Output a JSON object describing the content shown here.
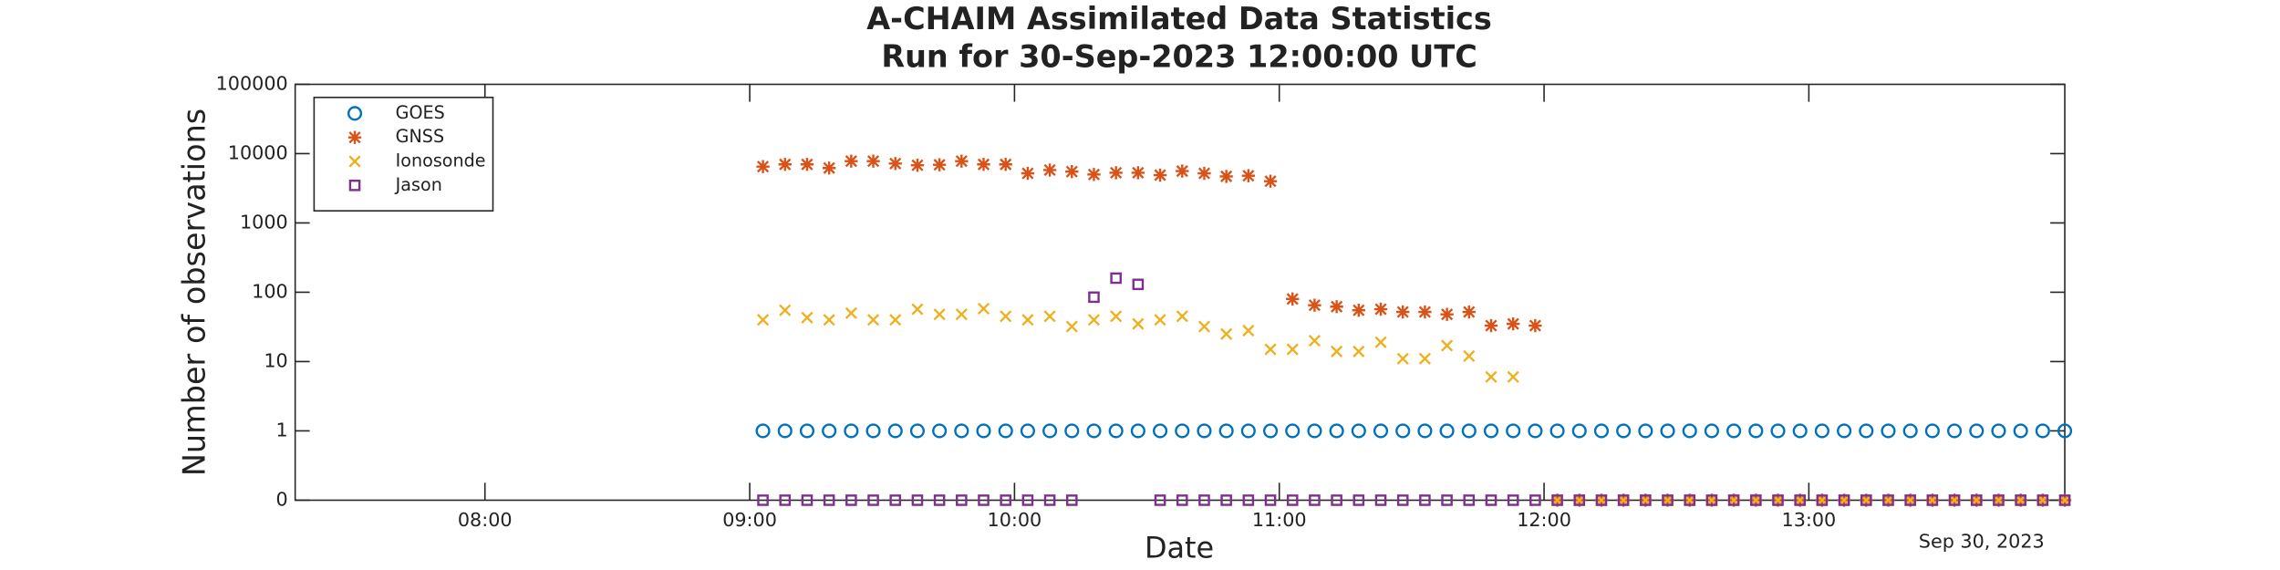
{
  "chart_data": {
    "type": "scatter",
    "title": "A-CHAIM Assimilated Data Statistics",
    "subtitle": "Run for 30-Sep-2023 12:00:00 UTC",
    "x_label": "Date",
    "y_label": "Number of observations",
    "x_offset_label": "Sep 30, 2023",
    "log_y": true,
    "grid": false,
    "legend": "upper-left",
    "xlim": [
      "07:17",
      "13:58"
    ],
    "xticks": [
      "08:00",
      "09:00",
      "10:00",
      "11:00",
      "12:00",
      "13:00"
    ],
    "ylim": [
      0,
      100000
    ],
    "yticks": [
      0,
      1,
      10,
      100,
      1000,
      10000,
      100000
    ],
    "x": [
      "09:03",
      "09:08",
      "09:13",
      "09:18",
      "09:23",
      "09:28",
      "09:33",
      "09:38",
      "09:43",
      "09:48",
      "09:53",
      "09:58",
      "10:03",
      "10:08",
      "10:13",
      "10:18",
      "10:23",
      "10:28",
      "10:33",
      "10:38",
      "10:43",
      "10:48",
      "10:53",
      "10:58",
      "11:03",
      "11:08",
      "11:13",
      "11:18",
      "11:23",
      "11:28",
      "11:33",
      "11:38",
      "11:43",
      "11:48",
      "11:53",
      "11:58",
      "12:03",
      "12:08",
      "12:13",
      "12:18",
      "12:23",
      "12:28",
      "12:33",
      "12:38",
      "12:43",
      "12:48",
      "12:53",
      "12:58",
      "13:03",
      "13:08",
      "13:13",
      "13:18",
      "13:23",
      "13:28",
      "13:33",
      "13:38",
      "13:43",
      "13:48",
      "13:53",
      "13:58"
    ],
    "series": [
      {
        "name": "GOES",
        "color": "#0072bd",
        "marker": "circle",
        "values": [
          1,
          1,
          1,
          1,
          1,
          1,
          1,
          1,
          1,
          1,
          1,
          1,
          1,
          1,
          1,
          1,
          1,
          1,
          1,
          1,
          1,
          1,
          1,
          1,
          1,
          1,
          1,
          1,
          1,
          1,
          1,
          1,
          1,
          1,
          1,
          1,
          1,
          1,
          1,
          1,
          1,
          1,
          1,
          1,
          1,
          1,
          1,
          1,
          1,
          1,
          1,
          1,
          1,
          1,
          1,
          1,
          1,
          1,
          1,
          1
        ]
      },
      {
        "name": "GNSS",
        "color": "#d95319",
        "marker": "asterisk",
        "values": [
          6500,
          7000,
          7000,
          6200,
          7800,
          7800,
          7200,
          6800,
          6900,
          7800,
          7000,
          7000,
          5200,
          5800,
          5500,
          5000,
          5300,
          5300,
          4900,
          5600,
          5200,
          4700,
          4800,
          4000,
          80,
          65,
          62,
          55,
          57,
          52,
          52,
          48,
          52,
          33,
          35,
          33,
          0,
          0,
          0,
          0,
          0,
          0,
          0,
          0,
          0,
          0,
          0,
          0,
          0,
          0,
          0,
          0,
          0,
          0,
          0,
          0,
          0,
          0,
          0,
          0
        ]
      },
      {
        "name": "Ionosonde",
        "color": "#edb120",
        "marker": "x",
        "values": [
          40,
          55,
          43,
          40,
          50,
          40,
          40,
          57,
          48,
          48,
          58,
          45,
          40,
          45,
          32,
          40,
          45,
          35,
          40,
          45,
          32,
          25,
          28,
          15,
          15,
          20,
          14,
          14,
          19,
          11,
          11,
          17,
          12,
          6,
          6,
          null,
          0,
          0,
          0,
          0,
          0,
          0,
          0,
          0,
          0,
          0,
          0,
          0,
          0,
          0,
          0,
          0,
          0,
          0,
          0,
          0,
          0,
          0,
          0,
          0
        ]
      },
      {
        "name": "Jason",
        "color": "#7e2f8e",
        "marker": "square",
        "values": [
          0,
          0,
          0,
          0,
          0,
          0,
          0,
          0,
          0,
          0,
          0,
          0,
          0,
          0,
          0,
          85,
          160,
          130,
          0,
          0,
          0,
          0,
          0,
          0,
          0,
          0,
          0,
          0,
          0,
          0,
          0,
          0,
          0,
          0,
          0,
          0,
          0,
          0,
          0,
          0,
          0,
          0,
          0,
          0,
          0,
          0,
          0,
          0,
          0,
          0,
          0,
          0,
          0,
          0,
          0,
          0,
          0,
          0,
          0,
          0
        ]
      }
    ]
  }
}
